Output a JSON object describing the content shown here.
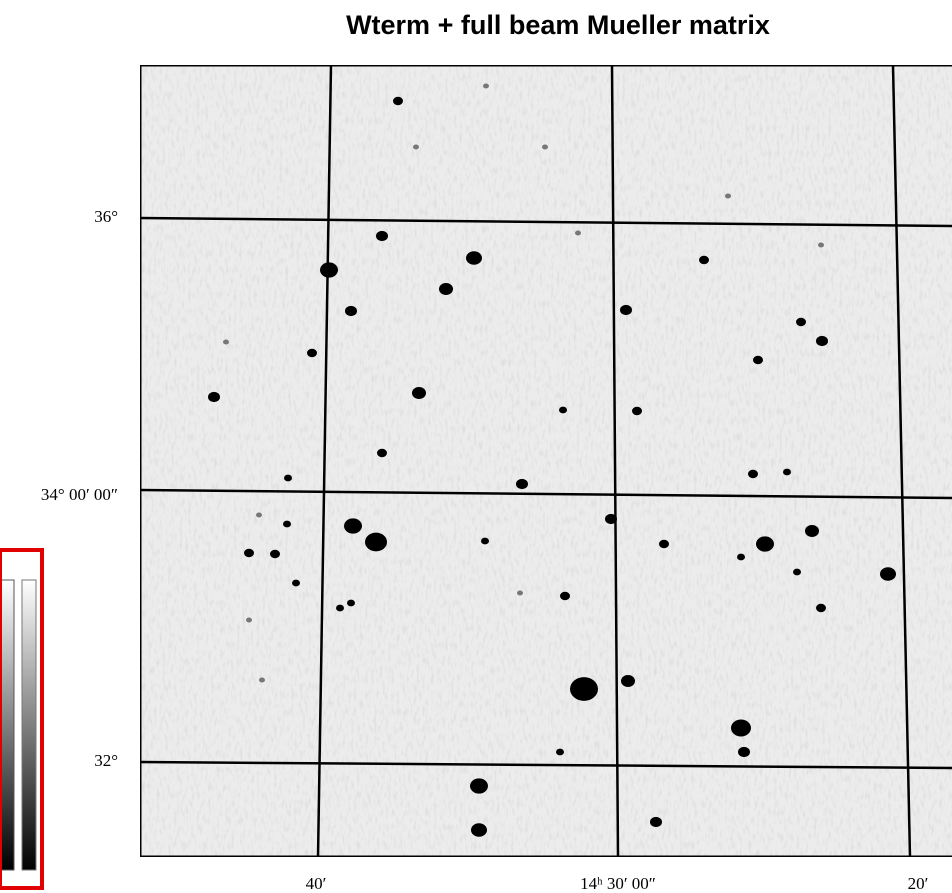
{
  "title": "Wterm + full beam Mueller matrix",
  "y_labels": [
    "36°",
    "34° 00′ 00″",
    "32°"
  ],
  "x_labels": [
    "40′",
    "14ʰ 30′ 00″",
    "20′"
  ]
}
